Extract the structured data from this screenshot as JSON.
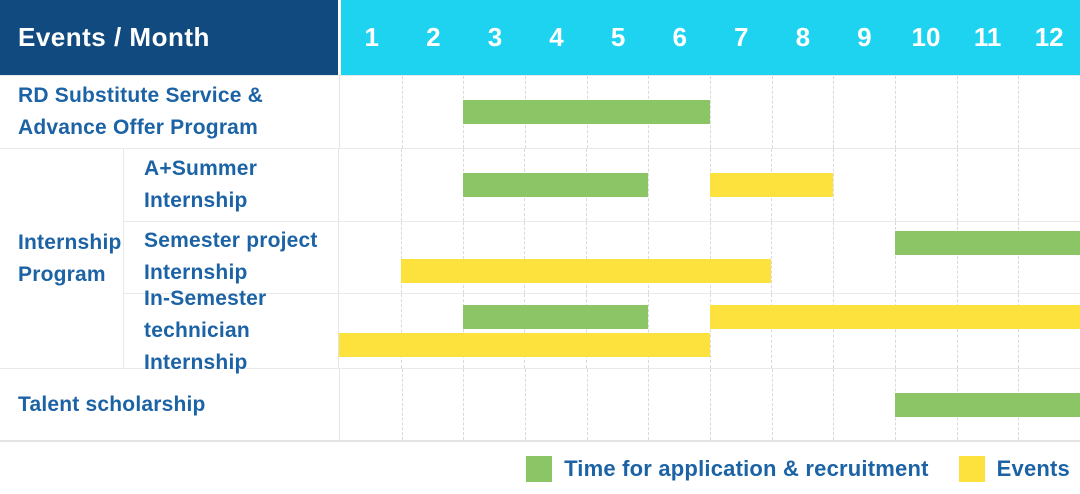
{
  "header": {
    "title": "Events / Month",
    "months": [
      "1",
      "2",
      "3",
      "4",
      "5",
      "6",
      "7",
      "8",
      "9",
      "10",
      "11",
      "12"
    ]
  },
  "rows": {
    "rd": {
      "label_lines": [
        "RD Substitute Service &",
        "Advance Offer Program"
      ]
    },
    "a_summer": {
      "label_lines": [
        "A+Summer",
        "Internship"
      ]
    },
    "semester": {
      "label_lines": [
        "Semester project",
        "Internship"
      ]
    },
    "in_semester": {
      "label_lines": [
        "In-Semester",
        "technician Internship"
      ]
    },
    "talent": {
      "label_lines": [
        "Talent scholarship"
      ]
    }
  },
  "group": {
    "label_lines": [
      "Internship",
      "Program"
    ]
  },
  "bars_by_row": {
    "rd": [
      {
        "color": "green",
        "start": 3,
        "end": 6,
        "line": "single"
      }
    ],
    "a_summer": [
      {
        "color": "green",
        "start": 3,
        "end": 5,
        "line": "single"
      },
      {
        "color": "yellow",
        "start": 7,
        "end": 8,
        "line": "single"
      }
    ],
    "semester": [
      {
        "color": "green",
        "start": 10,
        "end": 12,
        "line": "top"
      },
      {
        "color": "yellow",
        "start": 2,
        "end": 7,
        "line": "bottom"
      }
    ],
    "in_semester": [
      {
        "color": "green",
        "start": 3,
        "end": 5,
        "line": "top"
      },
      {
        "color": "yellow",
        "start": 7,
        "end": 12,
        "line": "top"
      },
      {
        "color": "yellow",
        "start": 1,
        "end": 6,
        "line": "bottom"
      }
    ],
    "talent": [
      {
        "color": "green",
        "start": 10,
        "end": 12,
        "line": "single"
      }
    ]
  },
  "legend": {
    "items": [
      {
        "color": "green",
        "label": "Time for application & recruitment"
      },
      {
        "color": "yellow",
        "label": "Events"
      }
    ]
  },
  "colors": {
    "green": "#8bc566",
    "yellow": "#fde23e",
    "header_blue": "#114a7e",
    "header_cyan": "#1dd3ef",
    "label_blue": "#1c63a6"
  },
  "chart_data": {
    "type": "gantt-table",
    "title": "Events / Month",
    "x_axis": {
      "label": "Month",
      "ticks": [
        1,
        2,
        3,
        4,
        5,
        6,
        7,
        8,
        9,
        10,
        11,
        12
      ],
      "range": [
        1,
        12
      ]
    },
    "grid": "vertical-dashed",
    "legend_position": "bottom-right",
    "series_legend": [
      "Time for application & recruitment",
      "Events"
    ],
    "rows": [
      {
        "label": "RD Substitute Service & Advance Offer Program",
        "group": null,
        "bars": [
          {
            "series": "Time for application & recruitment",
            "start_month": 3,
            "end_month": 6
          }
        ]
      },
      {
        "label": "A+Summer Internship",
        "group": "Internship Program",
        "bars": [
          {
            "series": "Time for application & recruitment",
            "start_month": 3,
            "end_month": 5
          },
          {
            "series": "Events",
            "start_month": 7,
            "end_month": 8
          }
        ]
      },
      {
        "label": "Semester project Internship",
        "group": "Internship Program",
        "bars": [
          {
            "series": "Time for application & recruitment",
            "start_month": 10,
            "end_month": 12
          },
          {
            "series": "Events",
            "start_month": 2,
            "end_month": 7
          }
        ]
      },
      {
        "label": "In-Semester technician Internship",
        "group": "Internship Program",
        "bars": [
          {
            "series": "Time for application & recruitment",
            "start_month": 3,
            "end_month": 5
          },
          {
            "series": "Events",
            "start_month": 7,
            "end_month": 12
          },
          {
            "series": "Events",
            "start_month": 1,
            "end_month": 6
          }
        ]
      },
      {
        "label": "Talent scholarship",
        "group": null,
        "bars": [
          {
            "series": "Time for application & recruitment",
            "start_month": 10,
            "end_month": 12
          }
        ]
      }
    ]
  }
}
